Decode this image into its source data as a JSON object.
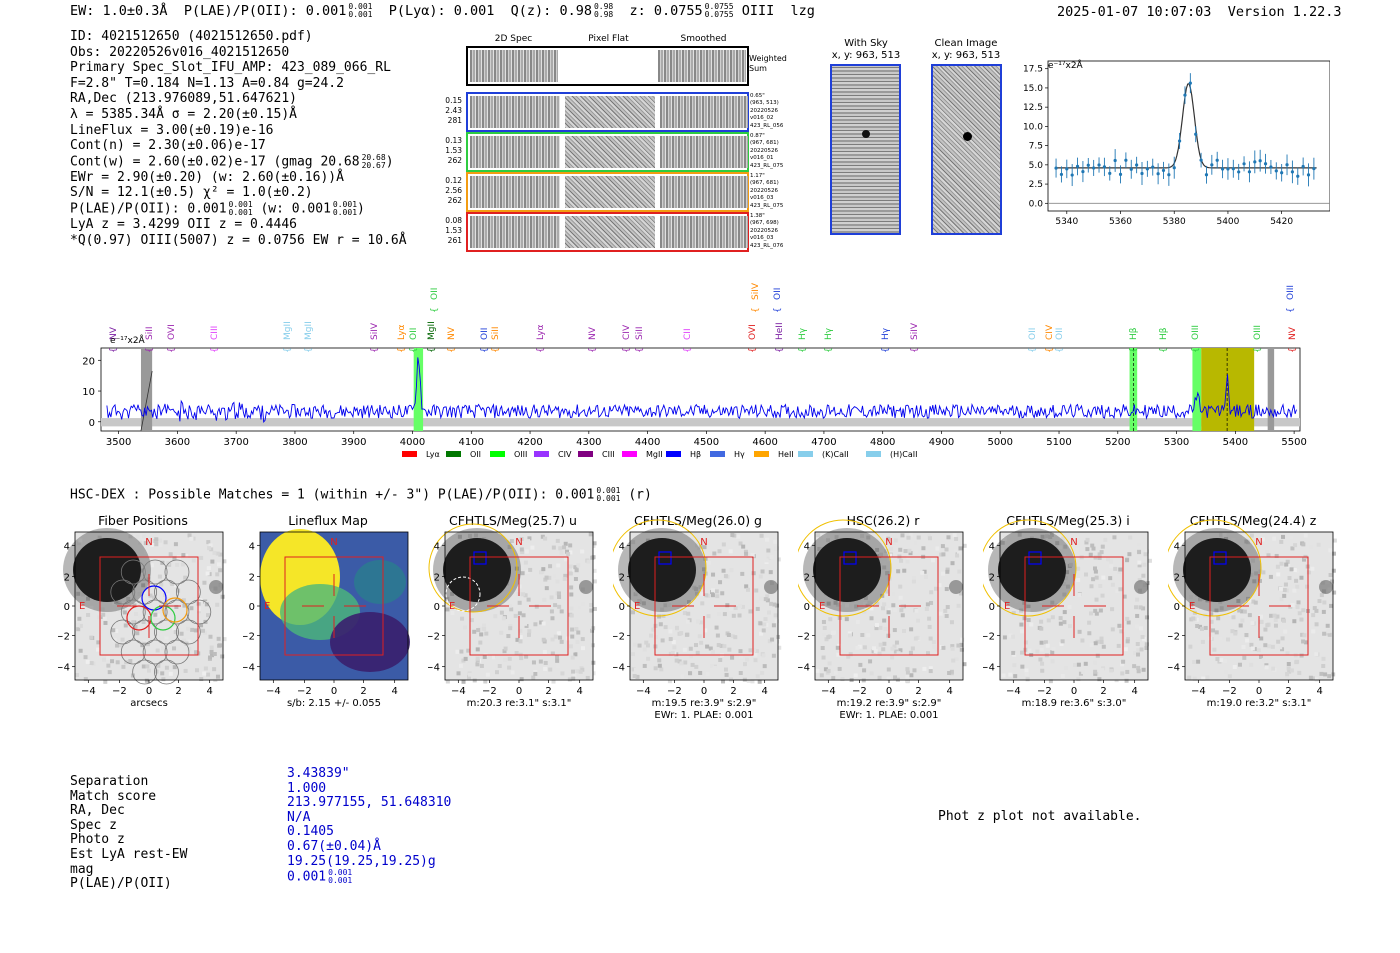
{
  "header": {
    "ew": "EW: 1.0±0.3Å",
    "plae_label": "P(LAE)/P(OII): 0.001",
    "plae_sup": "0.001",
    "plae_sub": "0.001",
    "plya": "P(Lyα): 0.001",
    "qz_label": "Q(z): 0.98",
    "qz_sup": "0.98",
    "qz_sub": "0.98",
    "z_label": "z: 0.0755",
    "z_sup": "0.0755",
    "z_sub": "0.0755",
    "line_id": "OIII",
    "flag": "lzg",
    "datetime": "2025-01-07 10:07:03",
    "version": "Version 1.22.3"
  },
  "info": {
    "id": "ID: 4021512650 (4021512650.pdf)",
    "obs": "Obs: 20220526v016_4021512650",
    "primary": "Primary Spec_Slot_IFU_AMP: 423_089_066_RL",
    "fit": "F=2.8\"  T=0.184  N=1.13  A=0.84  g=24.2",
    "radec": "RA,Dec (213.976089,51.647621)",
    "lambda": "λ = 5385.34Å  σ = 2.20(±0.15)Å",
    "lineflux": "LineFlux = 3.00(±0.19)e-16",
    "contn": "Cont(n) = 2.30(±0.06)e-17",
    "contw": "Cont(w) = 2.60(±0.02)e-17 (gmag 20.68",
    "contw_sup": "20.68",
    "contw_sub": "20.67",
    "contw_end": ")",
    "ewr": "EWr = 2.90(±0.20) (w: 2.60(±0.16))Å",
    "sn": "S/N = 12.1(±0.5)  χ² = 1.0(±0.2)",
    "plae": "P(LAE)/P(OII): 0.001",
    "plae_sup": "0.001",
    "plae_sub": "0.001",
    "plae_w": "(w: 0.001",
    "plae_w_sup": "0.001",
    "plae_w_sub": "0.001",
    "plae_end": ")",
    "lya": "LyA z = 3.4299  OII z = 0.4446",
    "q": "*Q(0.97) OIII(5007) z = 0.0756  EW r = 10.6Å"
  },
  "cutouts": {
    "headers": [
      "2D Spec",
      "Pixel Flat",
      "Smoothed"
    ],
    "weighted_sum": "Weighted Sum",
    "rows": [
      {
        "left": [
          "0.15",
          "2.43",
          "281"
        ],
        "right": [
          "0.65\"",
          "(963, 513)",
          "20220526",
          "v016_02",
          "423_RL_056"
        ],
        "color": "#1f3fd8"
      },
      {
        "left": [
          "0.13",
          "1.53",
          "262"
        ],
        "right": [
          "0.87\"",
          "(967, 681)",
          "20220526",
          "v016_01",
          "423_RL_075"
        ],
        "color": "#2ecc40"
      },
      {
        "left": [
          "0.12",
          "2.56",
          "262"
        ],
        "right": [
          "1.17\"",
          "(967, 681)",
          "20220526",
          "v016_03",
          "423_RL_075"
        ],
        "color": "#f39c12"
      },
      {
        "left": [
          "0.08",
          "1.53",
          "261"
        ],
        "right": [
          "1.38\"",
          "(967, 698)",
          "20220526",
          "v016_03",
          "423_RL_076"
        ],
        "color": "#e02020"
      }
    ]
  },
  "sky": {
    "with_sky_title": "With Sky",
    "with_sky_coords": "x, y: 963, 513",
    "clean_title": "Clean Image",
    "clean_coords": "x, y: 963, 513"
  },
  "fit_plot": {
    "unit": "e⁻¹⁷x2Å",
    "yticks": [
      "17.5",
      "15.0",
      "12.5",
      "10.0",
      "7.5",
      "5.0",
      "2.5",
      "0.0"
    ],
    "xticks": [
      "5340",
      "5360",
      "5380",
      "5400",
      "5420"
    ]
  },
  "spectrum": {
    "unit": "e⁻¹⁷x2Å",
    "yticks": [
      "20",
      "10",
      "0"
    ],
    "xticks": [
      "3500",
      "3600",
      "3700",
      "3800",
      "3900",
      "4000",
      "4100",
      "4200",
      "4300",
      "4400",
      "4500",
      "4600",
      "4700",
      "4800",
      "4900",
      "5000",
      "5100",
      "5200",
      "5300",
      "5400",
      "5500"
    ],
    "lines": [
      {
        "t": "NV",
        "c": "#7b1fa2",
        "x": 112,
        "row": 1
      },
      {
        "t": "SiII",
        "c": "#9c27b0",
        "x": 148,
        "row": 1
      },
      {
        "t": "OVI",
        "c": "#9c27b0",
        "x": 170,
        "row": 1
      },
      {
        "t": "CIII",
        "c": "#e040fb",
        "x": 213,
        "row": 1
      },
      {
        "t": "MgII",
        "c": "#87ceeb",
        "x": 286,
        "row": 1
      },
      {
        "t": "MgII",
        "c": "#87ceeb",
        "x": 307,
        "row": 1
      },
      {
        "t": "SiIV",
        "c": "#9c27b0",
        "x": 373,
        "row": 1
      },
      {
        "t": "Lyα",
        "c": "#ff8800",
        "x": 400,
        "row": 1
      },
      {
        "t": "OII",
        "c": "#2ecc40",
        "x": 412,
        "row": 1
      },
      {
        "t": "OII",
        "c": "#2ecc40",
        "x": 433,
        "row": 0
      },
      {
        "t": "MgII",
        "c": "#006400",
        "x": 430,
        "row": 1
      },
      {
        "t": "NV",
        "c": "#ff8800",
        "x": 450,
        "row": 1
      },
      {
        "t": "OII",
        "c": "#1f3fd8",
        "x": 483,
        "row": 1
      },
      {
        "t": "SiII",
        "c": "#ff8800",
        "x": 494,
        "row": 1
      },
      {
        "t": "Lyα",
        "c": "#9c27b0",
        "x": 539,
        "row": 1
      },
      {
        "t": "NV",
        "c": "#9c27b0",
        "x": 591,
        "row": 1
      },
      {
        "t": "CIV",
        "c": "#9c27b0",
        "x": 625,
        "row": 1
      },
      {
        "t": "SiII",
        "c": "#9c27b0",
        "x": 638,
        "row": 1
      },
      {
        "t": "CII",
        "c": "#e040fb",
        "x": 686,
        "row": 1
      },
      {
        "t": "SiIV",
        "c": "#ff8800",
        "x": 754,
        "row": 0
      },
      {
        "t": "OII",
        "c": "#1f3fd8",
        "x": 776,
        "row": 0
      },
      {
        "t": "OVI",
        "c": "#e02020",
        "x": 751,
        "row": 1
      },
      {
        "t": "HeII",
        "c": "#7b1fa2",
        "x": 778,
        "row": 1
      },
      {
        "t": "Hγ",
        "c": "#2ecc40",
        "x": 801,
        "row": 1
      },
      {
        "t": "Hγ",
        "c": "#2ecc40",
        "x": 827,
        "row": 1
      },
      {
        "t": "Hγ",
        "c": "#1f3fd8",
        "x": 884,
        "row": 1
      },
      {
        "t": "SiIV",
        "c": "#9c27b0",
        "x": 913,
        "row": 1
      },
      {
        "t": "OII",
        "c": "#87ceeb",
        "x": 1031,
        "row": 1
      },
      {
        "t": "CIV",
        "c": "#ff8800",
        "x": 1048,
        "row": 1
      },
      {
        "t": "OII",
        "c": "#87ceeb",
        "x": 1058,
        "row": 1
      },
      {
        "t": "Hβ",
        "c": "#2ecc40",
        "x": 1132,
        "row": 1
      },
      {
        "t": "Hβ",
        "c": "#2ecc40",
        "x": 1162,
        "row": 1
      },
      {
        "t": "OIII",
        "c": "#2ecc40",
        "x": 1194,
        "row": 1
      },
      {
        "t": "OIII",
        "c": "#2ecc40",
        "x": 1256,
        "row": 1
      },
      {
        "t": "OIII",
        "c": "#1f3fd8",
        "x": 1289,
        "row": 0
      },
      {
        "t": "NV",
        "c": "#e02020",
        "x": 1291,
        "row": 1
      }
    ],
    "legend": [
      {
        "t": "Lyα",
        "c": "#ff0000"
      },
      {
        "t": "OII",
        "c": "#007700"
      },
      {
        "t": "OIII",
        "c": "#00ff00"
      },
      {
        "t": "CIV",
        "c": "#9933ff"
      },
      {
        "t": "CIII",
        "c": "#800080"
      },
      {
        "t": "MgII",
        "c": "#ff00ff"
      },
      {
        "t": "Hβ",
        "c": "#0000ff"
      },
      {
        "t": "Hγ",
        "c": "#4169e1"
      },
      {
        "t": "HeII",
        "c": "#ffa500"
      },
      {
        "t": "(K)CaII",
        "c": "#87ceeb"
      },
      {
        "t": "(H)CaII",
        "c": "#87ceeb"
      }
    ]
  },
  "hsc": {
    "label": "HSC-DEX : Possible Matches = 1 (within +/- 3\")  P(LAE)/P(OII): 0.001",
    "sup": "0.001",
    "sub": "0.001",
    "band": "(r)"
  },
  "panels": [
    {
      "title": "Fiber Positions",
      "xlabel": "arcsecs",
      "line2": ""
    },
    {
      "title": "Lineflux Map",
      "xlabel": "s/b: 2.15 +/- 0.055",
      "line2": ""
    },
    {
      "title": "CFHTLS/Meg(25.7) u",
      "xlabel": "m:20.3  re:3.1\"  s:3.1\"",
      "line2": ""
    },
    {
      "title": "CFHTLS/Meg(26.0) g",
      "xlabel": "m:19.5  re:3.9\"  s:2.9\"",
      "line2": "EWr: 1. PLAE: 0.001"
    },
    {
      "title": "HSC(26.2) r",
      "xlabel": "m:19.2  re:3.9\"  s:2.9\"",
      "line2": "EWr: 1. PLAE: 0.001"
    },
    {
      "title": "CFHTLS/Meg(25.3) i",
      "xlabel": "m:18.9  re:3.6\"  s:3.0\"",
      "line2": ""
    },
    {
      "title": "CFHTLS/Meg(24.4) z",
      "xlabel": "m:19.0  re:3.2\"  s:3.1\"",
      "line2": ""
    }
  ],
  "panel_axes": {
    "yticks": [
      "4",
      "2",
      "0",
      "−2",
      "−4"
    ],
    "xticks": [
      "−4",
      "−2",
      "0",
      "2",
      "4"
    ],
    "north": "N",
    "east": "E"
  },
  "match": {
    "labels": [
      "Separation",
      "Match score",
      "RA, Dec",
      "Spec z",
      "Photo z",
      "Est LyA rest-EW",
      "mag",
      "P(LAE)/P(OII)"
    ],
    "values": [
      "3.43839\"",
      "1.000",
      "213.977155, 51.648310",
      "N/A",
      "0.1405",
      "0.67(±0.04)Å",
      "19.25(19.25,19.25)g",
      "0.001"
    ],
    "plae_sup": "0.001",
    "plae_sub": "0.001"
  },
  "photz": "Phot z plot not available."
}
